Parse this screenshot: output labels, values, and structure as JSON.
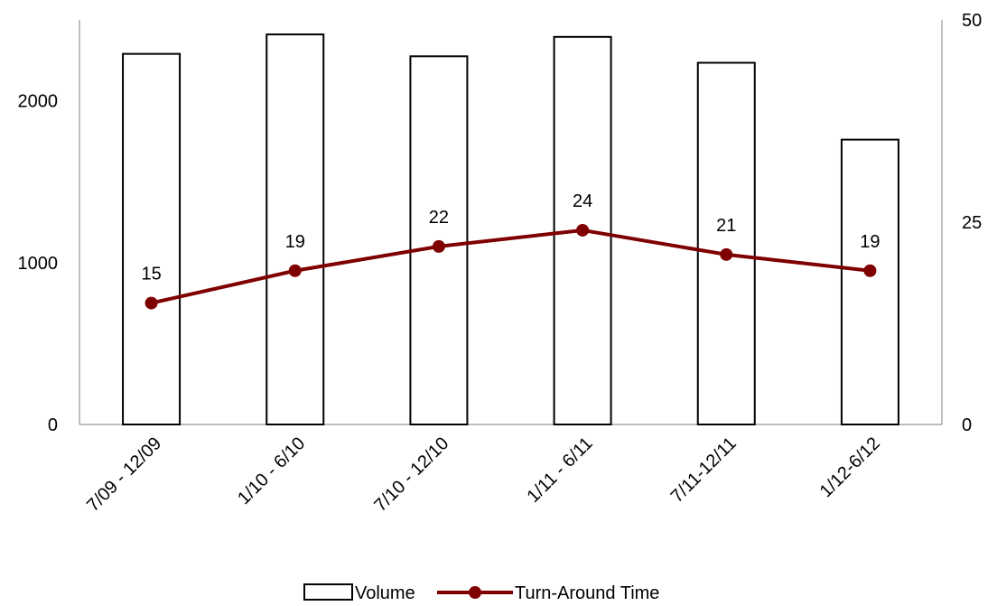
{
  "chart_data": {
    "type": "bar",
    "categories": [
      "7/09 - 12/09",
      "1/10 - 6/10",
      "7/10 - 12/10",
      "1/11 - 6/11",
      "7/11-12/11",
      "1/12-6/12"
    ],
    "series": [
      {
        "name": "Volume",
        "type": "bar",
        "axis": "left",
        "values": [
          2290,
          2410,
          2275,
          2395,
          2235,
          1760
        ],
        "bar_fill": "#ffffff",
        "bar_stroke": "#000000"
      },
      {
        "name": "Turn-Around Time",
        "type": "line",
        "axis": "right",
        "values": [
          15,
          19,
          22,
          24,
          21,
          19
        ],
        "data_labels": [
          "15",
          "19",
          "22",
          "24",
          "21",
          "19"
        ],
        "color": "#7f0000"
      }
    ],
    "y_left": {
      "ticks": [
        "0",
        "1000",
        "2000"
      ],
      "ylim": [
        0,
        2500
      ]
    },
    "y_right": {
      "ticks": [
        "0",
        "25",
        "50"
      ],
      "ylim": [
        0,
        50
      ]
    },
    "grid": false,
    "legend": {
      "position": "bottom",
      "entries": [
        "Volume",
        "Turn-Around Time"
      ]
    }
  }
}
